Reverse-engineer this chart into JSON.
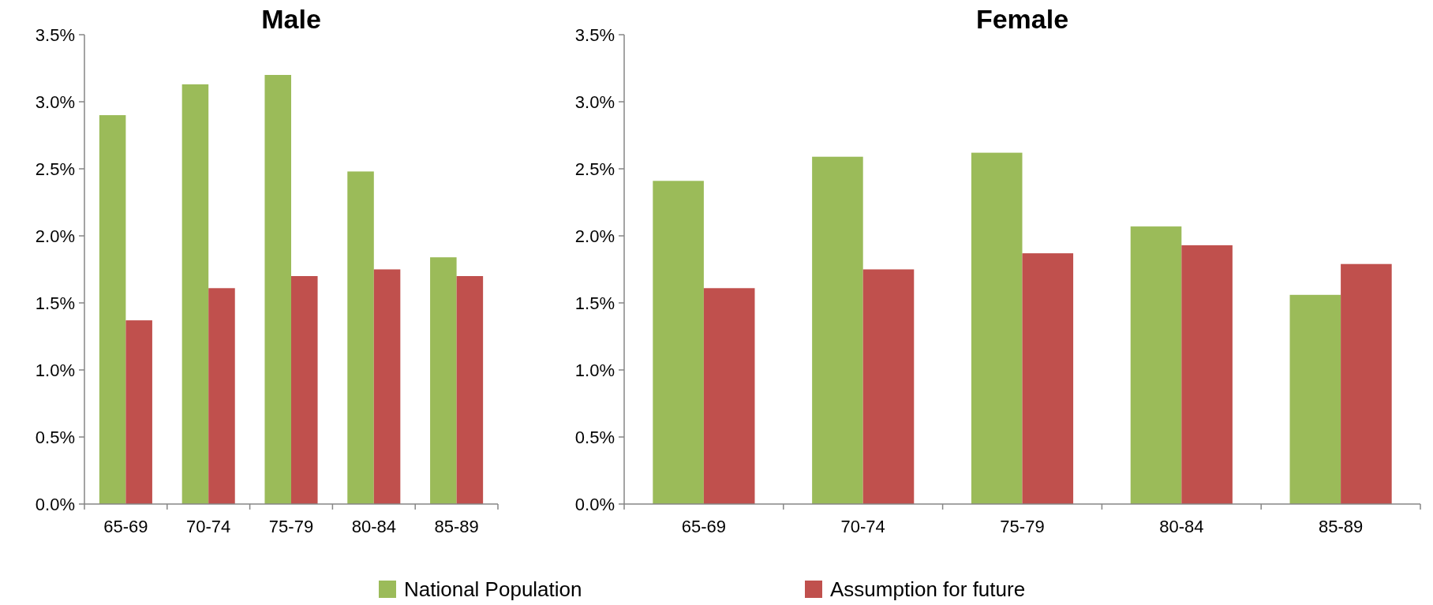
{
  "chart_data": [
    {
      "type": "bar",
      "title": "Male",
      "categories": [
        "65-69",
        "70-74",
        "75-79",
        "80-84",
        "85-89"
      ],
      "series": [
        {
          "name": "National Population",
          "color": "#9bbb59",
          "values": [
            2.9,
            3.13,
            3.2,
            2.48,
            1.84
          ]
        },
        {
          "name": "Assumption for future",
          "color": "#c0504d",
          "values": [
            1.37,
            1.61,
            1.7,
            1.75,
            1.7
          ]
        }
      ],
      "ylim": [
        0,
        3.5
      ],
      "yticks": [
        {
          "value": 0,
          "label": "0.0%"
        },
        {
          "value": 0.5,
          "label": "0.5%"
        },
        {
          "value": 1,
          "label": "1.0%"
        },
        {
          "value": 1.5,
          "label": "1.5%"
        },
        {
          "value": 2,
          "label": "2.0%"
        },
        {
          "value": 2.5,
          "label": "2.5%"
        },
        {
          "value": 3,
          "label": "3.0%"
        },
        {
          "value": 3.5,
          "label": "3.5%"
        }
      ],
      "legend": "bottom"
    },
    {
      "type": "bar",
      "title": "Female",
      "categories": [
        "65-69",
        "70-74",
        "75-79",
        "80-84",
        "85-89"
      ],
      "series": [
        {
          "color": "#9bbb59",
          "values": [
            2.41,
            2.59,
            2.62,
            2.07,
            1.56
          ]
        },
        {
          "color": "#c0504d",
          "values": [
            1.61,
            1.75,
            1.87,
            1.93,
            1.79
          ]
        }
      ],
      "ylim": [
        0,
        3.5
      ],
      "yticks": [
        {
          "value": 0,
          "label": "0.0%"
        },
        {
          "value": 0.5,
          "label": "0.5%"
        },
        {
          "value": 1,
          "label": "1.0%"
        },
        {
          "value": 1.5,
          "label": "1.5%"
        },
        {
          "value": 2,
          "label": "2.0%"
        },
        {
          "value": 2.5,
          "label": "2.5%"
        },
        {
          "value": 3,
          "label": "3.0%"
        },
        {
          "value": 3.5,
          "label": "3.5%"
        }
      ]
    }
  ]
}
